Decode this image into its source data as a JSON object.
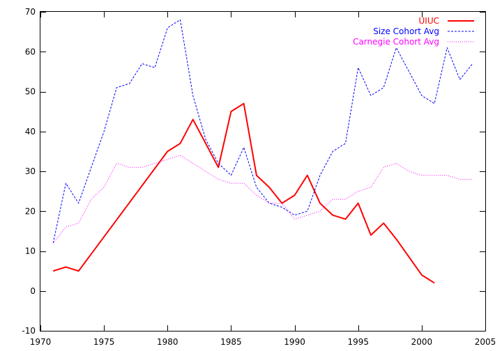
{
  "chart_data": {
    "type": "line",
    "title": "",
    "xlabel": "",
    "ylabel": "",
    "xlim": [
      1970,
      2005
    ],
    "ylim": [
      -10,
      70
    ],
    "x_ticks": [
      1970,
      1975,
      1980,
      1985,
      1990,
      1995,
      2000,
      2005
    ],
    "y_ticks": [
      -10,
      0,
      10,
      20,
      30,
      40,
      50,
      60,
      70
    ],
    "grid": false,
    "legend_position": "top-right",
    "series": [
      {
        "name": "UIUC",
        "color": "#ff0000",
        "style": "solid",
        "points": [
          [
            1971,
            5
          ],
          [
            1972,
            6
          ],
          [
            1973,
            5
          ],
          [
            1980,
            35
          ],
          [
            1981,
            37
          ],
          [
            1982,
            43
          ],
          [
            1984,
            31
          ],
          [
            1985,
            45
          ],
          [
            1986,
            47
          ],
          [
            1987,
            29
          ],
          [
            1988,
            26
          ],
          [
            1989,
            22
          ],
          [
            1990,
            24
          ],
          [
            1991,
            29
          ],
          [
            1992,
            22
          ],
          [
            1993,
            19
          ],
          [
            1994,
            18
          ],
          [
            1995,
            22
          ],
          [
            1996,
            14
          ],
          [
            1997,
            17
          ],
          [
            1998,
            13
          ],
          [
            2000,
            4
          ],
          [
            2001,
            2
          ]
        ]
      },
      {
        "name": "Size Cohort Avg",
        "color": "#0000ff",
        "style": "dashed",
        "points": [
          [
            1971,
            12
          ],
          [
            1972,
            27
          ],
          [
            1973,
            22
          ],
          [
            1974,
            31
          ],
          [
            1975,
            40
          ],
          [
            1976,
            51
          ],
          [
            1977,
            52
          ],
          [
            1978,
            57
          ],
          [
            1979,
            56
          ],
          [
            1980,
            66
          ],
          [
            1981,
            68
          ],
          [
            1982,
            49
          ],
          [
            1983,
            38
          ],
          [
            1984,
            32
          ],
          [
            1985,
            29
          ],
          [
            1986,
            36
          ],
          [
            1987,
            26
          ],
          [
            1988,
            22
          ],
          [
            1989,
            21
          ],
          [
            1990,
            19
          ],
          [
            1991,
            20
          ],
          [
            1992,
            29
          ],
          [
            1993,
            35
          ],
          [
            1994,
            37
          ],
          [
            1995,
            56
          ],
          [
            1996,
            49
          ],
          [
            1997,
            51
          ],
          [
            1998,
            61
          ],
          [
            1999,
            55
          ],
          [
            2000,
            49
          ],
          [
            2001,
            47
          ],
          [
            2002,
            61
          ],
          [
            2003,
            53
          ],
          [
            2004,
            57
          ]
        ]
      },
      {
        "name": "Carnegie Cohort Avg",
        "color": "#ff00ff",
        "style": "dotted",
        "points": [
          [
            1971,
            12
          ],
          [
            1972,
            16
          ],
          [
            1973,
            17
          ],
          [
            1974,
            23
          ],
          [
            1975,
            26
          ],
          [
            1976,
            32
          ],
          [
            1977,
            31
          ],
          [
            1978,
            31
          ],
          [
            1979,
            32
          ],
          [
            1980,
            33
          ],
          [
            1981,
            34
          ],
          [
            1982,
            32
          ],
          [
            1983,
            30
          ],
          [
            1984,
            28
          ],
          [
            1985,
            27
          ],
          [
            1986,
            27
          ],
          [
            1987,
            24
          ],
          [
            1988,
            22
          ],
          [
            1989,
            22
          ],
          [
            1990,
            18
          ],
          [
            1991,
            19
          ],
          [
            1992,
            20
          ],
          [
            1993,
            23
          ],
          [
            1994,
            23
          ],
          [
            1995,
            25
          ],
          [
            1996,
            26
          ],
          [
            1997,
            31
          ],
          [
            1998,
            32
          ],
          [
            1999,
            30
          ],
          [
            2000,
            29
          ],
          [
            2001,
            29
          ],
          [
            2002,
            29
          ],
          [
            2003,
            28
          ],
          [
            2004,
            28
          ]
        ]
      }
    ]
  }
}
